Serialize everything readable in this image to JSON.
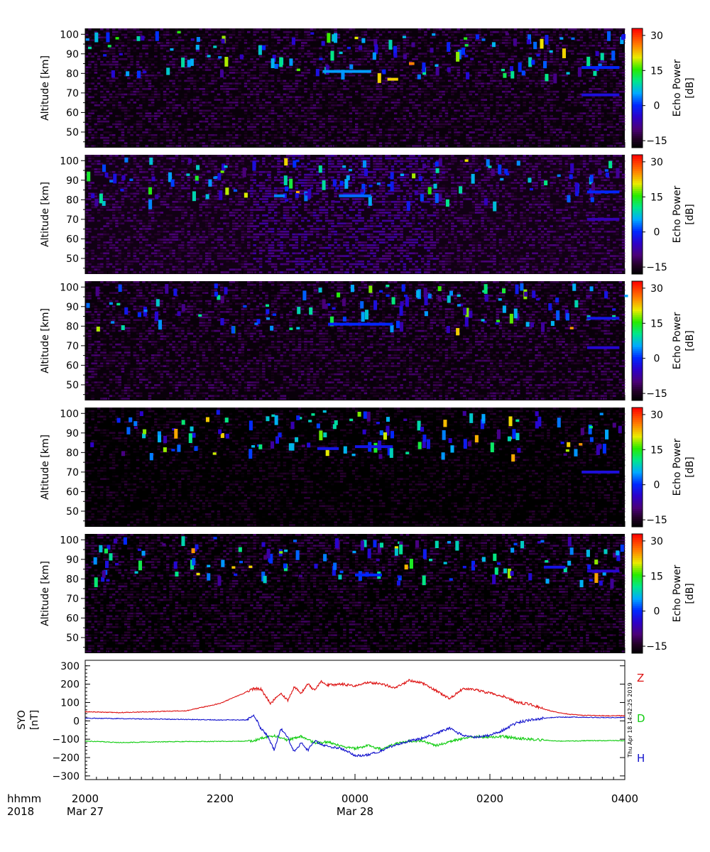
{
  "chart_data": [
    {
      "type": "heatmap",
      "panel": 1,
      "ylabel": "Altitude [km]",
      "yticks": [
        50,
        60,
        70,
        80,
        90,
        100
      ],
      "ylim": [
        42,
        103
      ],
      "colorbar": {
        "label_line1": "Echo Power",
        "label_line2": "[dB]",
        "ticks": [
          30,
          15,
          0,
          -15
        ],
        "range": [
          -18,
          33
        ]
      },
      "background_db": -13,
      "echo_layers": [
        {
          "t_start": 0.44,
          "t_end": 0.53,
          "alt": 81,
          "db": 5
        },
        {
          "t_start": 0.56,
          "t_end": 0.58,
          "alt": 77,
          "db": 22
        },
        {
          "t_start": 0.6,
          "t_end": 0.61,
          "alt": 85,
          "db": 26
        },
        {
          "t_start": 0.92,
          "t_end": 0.99,
          "alt": 83,
          "db": 0
        },
        {
          "t_start": 0.92,
          "t_end": 0.99,
          "alt": 69,
          "db": -3
        }
      ]
    },
    {
      "type": "heatmap",
      "panel": 2,
      "ylabel": "Altitude [km]",
      "yticks": [
        50,
        60,
        70,
        80,
        90,
        100
      ],
      "ylim": [
        42,
        103
      ],
      "colorbar": {
        "label_line1": "Echo Power",
        "label_line2": "[dB]",
        "ticks": [
          30,
          15,
          0,
          -15
        ],
        "range": [
          -18,
          33
        ]
      },
      "background_db": -12,
      "echo_layers": [
        {
          "t_start": 0.47,
          "t_end": 0.53,
          "alt": 82,
          "db": 3
        },
        {
          "t_start": 0.35,
          "t_end": 0.37,
          "alt": 82,
          "db": 4
        },
        {
          "t_start": 0.93,
          "t_end": 0.99,
          "alt": 84,
          "db": 0
        },
        {
          "t_start": 0.93,
          "t_end": 0.99,
          "alt": 70,
          "db": -6
        }
      ]
    },
    {
      "type": "heatmap",
      "panel": 3,
      "ylabel": "Altitude [km]",
      "yticks": [
        50,
        60,
        70,
        80,
        90,
        100
      ],
      "ylim": [
        42,
        103
      ],
      "colorbar": {
        "label_line1": "Echo Power",
        "label_line2": "[dB]",
        "ticks": [
          30,
          15,
          0,
          -15
        ],
        "range": [
          -18,
          33
        ]
      },
      "background_db": -13,
      "echo_layers": [
        {
          "t_start": 0.45,
          "t_end": 0.57,
          "alt": 81,
          "db": 0
        },
        {
          "t_start": 0.93,
          "t_end": 0.99,
          "alt": 84,
          "db": -2
        },
        {
          "t_start": 0.93,
          "t_end": 0.99,
          "alt": 69,
          "db": -4
        }
      ]
    },
    {
      "type": "heatmap",
      "panel": 4,
      "ylabel": "Altitude [km]",
      "yticks": [
        50,
        60,
        70,
        80,
        90,
        100
      ],
      "ylim": [
        42,
        103
      ],
      "colorbar": {
        "label_line1": "Echo Power",
        "label_line2": "[dB]",
        "ticks": [
          30,
          15,
          0,
          -15
        ],
        "range": [
          -18,
          33
        ]
      },
      "background_db": -16,
      "echo_layers": [
        {
          "t_start": 0.43,
          "t_end": 0.47,
          "alt": 82,
          "db": -2
        },
        {
          "t_start": 0.5,
          "t_end": 0.57,
          "alt": 83,
          "db": -2
        },
        {
          "t_start": 0.92,
          "t_end": 0.99,
          "alt": 70,
          "db": -3
        }
      ]
    },
    {
      "type": "heatmap",
      "panel": 5,
      "ylabel": "Altitude [km]",
      "yticks": [
        50,
        60,
        70,
        80,
        90,
        100
      ],
      "ylim": [
        42,
        103
      ],
      "colorbar": {
        "label_line1": "Echo Power",
        "label_line2": "[dB]",
        "ticks": [
          30,
          15,
          0,
          -15
        ],
        "range": [
          -18,
          33
        ]
      },
      "background_db": -14,
      "echo_layers": [
        {
          "t_start": 0.5,
          "t_end": 0.55,
          "alt": 82,
          "db": 0
        },
        {
          "t_start": 0.85,
          "t_end": 0.89,
          "alt": 86,
          "db": -2
        },
        {
          "t_start": 0.93,
          "t_end": 0.99,
          "alt": 84,
          "db": -4
        }
      ]
    },
    {
      "type": "line",
      "ylabel_line1": "SYO",
      "ylabel_line2": "[nT]",
      "ylim": [
        -320,
        330
      ],
      "yticks": [
        300,
        200,
        100,
        0,
        -100,
        -200,
        -300
      ],
      "x_range_hours": [
        0,
        8
      ],
      "series": [
        {
          "name": "Z",
          "color": "#dd1111",
          "x_hours": [
            0,
            0.5,
            1.0,
            1.5,
            2.0,
            2.5,
            2.6,
            2.75,
            2.9,
            3.0,
            3.1,
            3.2,
            3.3,
            3.4,
            3.5,
            3.6,
            3.8,
            4.0,
            4.2,
            4.4,
            4.6,
            4.8,
            5.0,
            5.2,
            5.4,
            5.6,
            5.8,
            6.0,
            6.2,
            6.4,
            6.6,
            6.8,
            7.0,
            7.2,
            7.4,
            7.7,
            8.0
          ],
          "values": [
            50,
            45,
            50,
            55,
            95,
            175,
            175,
            95,
            150,
            110,
            185,
            150,
            200,
            165,
            215,
            195,
            200,
            190,
            210,
            200,
            180,
            220,
            205,
            165,
            120,
            175,
            170,
            150,
            135,
            100,
            90,
            65,
            45,
            35,
            30,
            28,
            28
          ]
        },
        {
          "name": "D",
          "color": "#11cc11",
          "x_hours": [
            0,
            0.5,
            1.0,
            1.5,
            2.0,
            2.5,
            2.6,
            2.8,
            3.0,
            3.2,
            3.4,
            3.6,
            3.8,
            4.0,
            4.2,
            4.4,
            4.6,
            4.8,
            5.0,
            5.2,
            5.4,
            5.6,
            5.8,
            6.0,
            6.2,
            6.4,
            6.6,
            6.8,
            7.0,
            7.2,
            7.4,
            7.7,
            8.0
          ],
          "values": [
            -110,
            -118,
            -115,
            -113,
            -112,
            -110,
            -95,
            -80,
            -105,
            -85,
            -120,
            -115,
            -140,
            -150,
            -135,
            -155,
            -125,
            -110,
            -110,
            -135,
            -115,
            -95,
            -85,
            -90,
            -85,
            -95,
            -100,
            -105,
            -110,
            -110,
            -108,
            -108,
            -108
          ]
        },
        {
          "name": "H",
          "color": "#1111cc",
          "x_hours": [
            0,
            0.5,
            1.0,
            1.5,
            2.0,
            2.4,
            2.5,
            2.6,
            2.7,
            2.8,
            2.9,
            3.0,
            3.1,
            3.2,
            3.3,
            3.4,
            3.6,
            3.8,
            4.0,
            4.2,
            4.4,
            4.6,
            4.8,
            5.0,
            5.2,
            5.4,
            5.6,
            5.8,
            6.0,
            6.2,
            6.4,
            6.6,
            6.8,
            7.0,
            7.2,
            7.4,
            7.7,
            8.0
          ],
          "values": [
            15,
            12,
            10,
            8,
            5,
            5,
            35,
            -40,
            -80,
            -160,
            -40,
            -90,
            -170,
            -120,
            -160,
            -110,
            -140,
            -150,
            -190,
            -185,
            -160,
            -130,
            -110,
            -95,
            -70,
            -40,
            -80,
            -90,
            -80,
            -50,
            -10,
            5,
            15,
            20,
            20,
            20,
            18,
            18
          ]
        }
      ],
      "legend": [
        {
          "label": "Z",
          "color": "#dd1111"
        },
        {
          "label": "D",
          "color": "#11cc11"
        },
        {
          "label": "H",
          "color": "#1111cc"
        }
      ],
      "timestamp": "Thu Apr 18 14:42:25 2019"
    }
  ],
  "x_axis": {
    "label_line1": "hhmm",
    "label_line2": "2018",
    "ticks": [
      {
        "hours": 0,
        "label": "2000",
        "sub": "Mar 27"
      },
      {
        "hours": 2,
        "label": "2200",
        "sub": ""
      },
      {
        "hours": 4,
        "label": "0000",
        "sub": "Mar 28"
      },
      {
        "hours": 6,
        "label": "0200",
        "sub": ""
      },
      {
        "hours": 8,
        "label": "0400",
        "sub": ""
      }
    ]
  }
}
